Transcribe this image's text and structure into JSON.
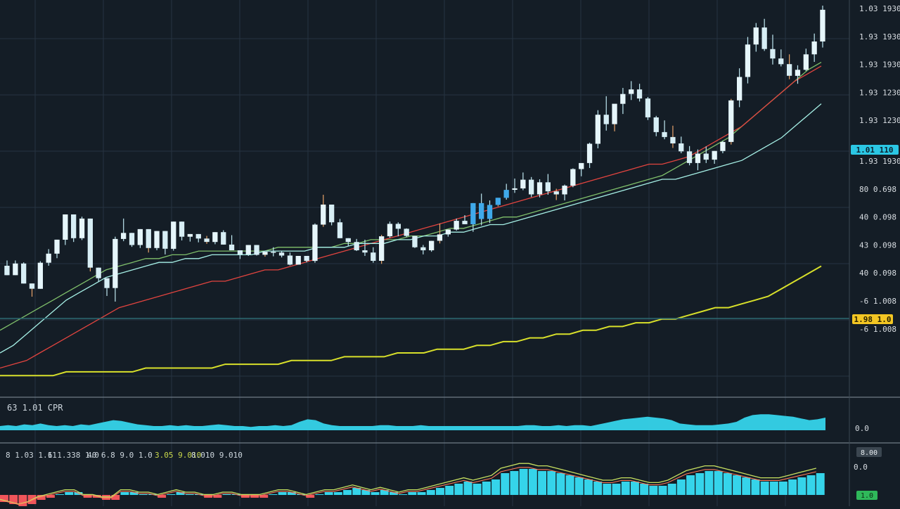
{
  "colors": {
    "background": "#141d26",
    "grid": "#263441",
    "bull": "#e6f6fb",
    "bear": "#e6f6fb",
    "wick": "#bfe8f2",
    "ma_green": "#7fbf6a",
    "ma_red": "#e2443f",
    "ma_cyan": "#a6f0e6",
    "ma_yellow": "#d8e02a",
    "volume": "#35d4ea",
    "hist_pos": "#35d4ea",
    "hist_neg": "#f0555a",
    "price_tag_cyan": "#2bc7e4",
    "price_tag_yellow": "#f3c623",
    "price_line": "#2d6b72",
    "axis_text": "#d8dde2"
  },
  "price_axis": {
    "ticks": [
      "1.03 1930",
      "1.93 1930",
      "1.93 1930",
      "1.93 1230",
      "1.93 1230",
      "1.93 1930",
      "80 0.698",
      "40 0.098",
      "43 0.098",
      "40 0.098",
      "-6 1.008",
      "-6 1.008"
    ]
  },
  "price_tags": {
    "current": "1.01 110",
    "level": "1.98 1.0"
  },
  "volume_panel": {
    "label": "63 1.01 CPR",
    "axis_value": "0.0"
  },
  "macd_panel": {
    "label_parts": [
      "8 1.03 1.11",
      "6 1.338 1.0",
      "40 6.8 9.0 1.0",
      "3.05 9.010",
      "8.010 9.010"
    ],
    "axis_top": "8.00",
    "axis_mid": "0.0",
    "axis_bottom": "1.0"
  },
  "chart_data": {
    "type": "candlestick",
    "title": "",
    "xlabel": "",
    "ylabel": "",
    "ylim": [
      0,
      100
    ],
    "grid": true,
    "legend": "none",
    "candles": [
      {
        "o": 31.1,
        "h": 32.5,
        "l": 28.6,
        "c": 28.6
      },
      {
        "o": 28.6,
        "h": 32.5,
        "l": 28.6,
        "c": 31.7
      },
      {
        "o": 31.7,
        "h": 32.0,
        "l": 26.4,
        "c": 26.4
      },
      {
        "o": 26.4,
        "h": 26.4,
        "l": 22.9,
        "c": 25.0
      },
      {
        "o": 25.0,
        "h": 32.3,
        "l": 25.0,
        "c": 31.9
      },
      {
        "o": 31.9,
        "h": 35.5,
        "l": 31.1,
        "c": 34.3
      },
      {
        "o": 34.3,
        "h": 38.0,
        "l": 33.1,
        "c": 38.0
      },
      {
        "o": 38.0,
        "h": 44.7,
        "l": 36.6,
        "c": 44.7
      },
      {
        "o": 44.7,
        "h": 44.7,
        "l": 37.4,
        "c": 38.4
      },
      {
        "o": 38.4,
        "h": 44.1,
        "l": 37.9,
        "c": 43.6
      },
      {
        "o": 43.6,
        "h": 43.6,
        "l": 29.6,
        "c": 30.6
      },
      {
        "o": 30.6,
        "h": 30.6,
        "l": 26.8,
        "c": 27.8
      },
      {
        "o": 27.8,
        "h": 27.8,
        "l": 23.1,
        "c": 25.2
      },
      {
        "o": 25.2,
        "h": 38.8,
        "l": 21.6,
        "c": 38.2
      },
      {
        "o": 38.2,
        "h": 43.6,
        "l": 37.6,
        "c": 39.8
      },
      {
        "o": 39.8,
        "h": 39.8,
        "l": 36.1,
        "c": 36.6
      },
      {
        "o": 36.6,
        "h": 40.8,
        "l": 35.8,
        "c": 40.8
      },
      {
        "o": 40.8,
        "h": 40.8,
        "l": 34.6,
        "c": 35.8
      },
      {
        "o": 35.8,
        "h": 40.3,
        "l": 35.2,
        "c": 40.3
      },
      {
        "o": 40.3,
        "h": 40.3,
        "l": 34.1,
        "c": 35.6
      },
      {
        "o": 35.6,
        "h": 42.8,
        "l": 35.1,
        "c": 42.8
      },
      {
        "o": 42.8,
        "h": 42.8,
        "l": 37.8,
        "c": 38.8
      },
      {
        "o": 38.8,
        "h": 39.5,
        "l": 37.5,
        "c": 39.5
      },
      {
        "o": 39.5,
        "h": 39.5,
        "l": 37.3,
        "c": 38.3
      },
      {
        "o": 38.3,
        "h": 39.0,
        "l": 36.9,
        "c": 37.4
      },
      {
        "o": 37.4,
        "h": 40.0,
        "l": 36.8,
        "c": 40.0
      },
      {
        "o": 40.0,
        "h": 40.5,
        "l": 36.7,
        "c": 36.7
      },
      {
        "o": 36.7,
        "h": 39.2,
        "l": 35.2,
        "c": 35.2
      },
      {
        "o": 35.2,
        "h": 35.2,
        "l": 32.9,
        "c": 34.1
      },
      {
        "o": 34.1,
        "h": 36.6,
        "l": 33.7,
        "c": 36.6
      },
      {
        "o": 36.6,
        "h": 36.6,
        "l": 33.8,
        "c": 34.0
      },
      {
        "o": 34.0,
        "h": 34.8,
        "l": 33.5,
        "c": 34.8
      },
      {
        "o": 34.8,
        "h": 36.0,
        "l": 33.6,
        "c": 34.6
      },
      {
        "o": 34.6,
        "h": 35.0,
        "l": 33.3,
        "c": 33.8
      },
      {
        "o": 33.8,
        "h": 34.6,
        "l": 31.2,
        "c": 31.4
      },
      {
        "o": 31.4,
        "h": 33.7,
        "l": 31.4,
        "c": 33.7
      },
      {
        "o": 33.7,
        "h": 33.7,
        "l": 32.0,
        "c": 32.4
      },
      {
        "o": 32.4,
        "h": 42.3,
        "l": 31.9,
        "c": 42.0
      },
      {
        "o": 42.0,
        "h": 49.9,
        "l": 41.4,
        "c": 47.3
      },
      {
        "o": 47.3,
        "h": 47.3,
        "l": 41.8,
        "c": 42.6
      },
      {
        "o": 42.6,
        "h": 43.5,
        "l": 38.4,
        "c": 38.4
      },
      {
        "o": 38.4,
        "h": 38.4,
        "l": 36.4,
        "c": 37.4
      },
      {
        "o": 37.4,
        "h": 38.2,
        "l": 35.0,
        "c": 35.2
      },
      {
        "o": 35.2,
        "h": 38.0,
        "l": 33.7,
        "c": 34.6
      },
      {
        "o": 34.6,
        "h": 36.0,
        "l": 31.9,
        "c": 32.4
      },
      {
        "o": 32.4,
        "h": 39.3,
        "l": 31.6,
        "c": 38.9
      },
      {
        "o": 38.9,
        "h": 42.8,
        "l": 38.5,
        "c": 42.2
      },
      {
        "o": 42.2,
        "h": 42.6,
        "l": 38.9,
        "c": 40.9
      },
      {
        "o": 40.9,
        "h": 41.0,
        "l": 38.7,
        "c": 39.0
      },
      {
        "o": 39.0,
        "h": 39.0,
        "l": 35.8,
        "c": 36.0
      },
      {
        "o": 36.0,
        "h": 36.6,
        "l": 34.1,
        "c": 35.2
      },
      {
        "o": 35.2,
        "h": 37.7,
        "l": 34.8,
        "c": 37.7
      },
      {
        "o": 37.7,
        "h": 42.3,
        "l": 37.0,
        "c": 39.4
      },
      {
        "o": 39.4,
        "h": 40.7,
        "l": 38.8,
        "c": 40.7
      },
      {
        "o": 40.7,
        "h": 43.6,
        "l": 40.4,
        "c": 43.0
      },
      {
        "o": 43.0,
        "h": 44.5,
        "l": 42.1,
        "c": 42.1
      },
      {
        "o": 42.1,
        "h": 47.7,
        "l": 40.1,
        "c": 47.7
      },
      {
        "o": 47.7,
        "h": 50.2,
        "l": 41.8,
        "c": 43.5
      },
      {
        "o": 43.5,
        "h": 48.4,
        "l": 42.4,
        "c": 47.2
      },
      {
        "o": 47.2,
        "h": 49.1,
        "l": 46.8,
        "c": 49.1
      },
      {
        "o": 49.1,
        "h": 52.8,
        "l": 48.6,
        "c": 51.2
      },
      {
        "o": 51.2,
        "h": 54.2,
        "l": 50.4,
        "c": 51.6
      },
      {
        "o": 51.6,
        "h": 55.8,
        "l": 51.1,
        "c": 53.9
      },
      {
        "o": 53.9,
        "h": 54.6,
        "l": 49.3,
        "c": 50.0
      },
      {
        "o": 50.0,
        "h": 54.0,
        "l": 49.2,
        "c": 53.2
      },
      {
        "o": 53.2,
        "h": 55.4,
        "l": 49.9,
        "c": 50.8
      },
      {
        "o": 50.8,
        "h": 51.5,
        "l": 48.5,
        "c": 50.0
      },
      {
        "o": 50.0,
        "h": 52.6,
        "l": 48.4,
        "c": 52.3
      },
      {
        "o": 52.3,
        "h": 56.9,
        "l": 51.9,
        "c": 56.7
      },
      {
        "o": 56.7,
        "h": 57.4,
        "l": 54.8,
        "c": 58.3
      },
      {
        "o": 58.3,
        "h": 63.7,
        "l": 57.0,
        "c": 63.4
      },
      {
        "o": 63.4,
        "h": 72.3,
        "l": 62.2,
        "c": 71.1
      },
      {
        "o": 71.1,
        "h": 76.0,
        "l": 66.9,
        "c": 68.6
      },
      {
        "o": 68.6,
        "h": 73.7,
        "l": 66.7,
        "c": 74.0
      },
      {
        "o": 74.0,
        "h": 78.2,
        "l": 71.3,
        "c": 76.6
      },
      {
        "o": 76.6,
        "h": 80.0,
        "l": 75.0,
        "c": 77.8
      },
      {
        "o": 77.8,
        "h": 79.3,
        "l": 74.6,
        "c": 75.4
      },
      {
        "o": 75.4,
        "h": 75.8,
        "l": 69.7,
        "c": 70.4
      },
      {
        "o": 70.4,
        "h": 70.8,
        "l": 65.4,
        "c": 66.5
      },
      {
        "o": 66.5,
        "h": 69.6,
        "l": 64.6,
        "c": 65.2
      },
      {
        "o": 65.2,
        "h": 68.2,
        "l": 62.3,
        "c": 63.5
      },
      {
        "o": 63.5,
        "h": 65.3,
        "l": 60.9,
        "c": 61.4
      },
      {
        "o": 61.4,
        "h": 62.8,
        "l": 57.7,
        "c": 58.3
      },
      {
        "o": 58.3,
        "h": 61.9,
        "l": 56.4,
        "c": 60.8
      },
      {
        "o": 60.8,
        "h": 62.7,
        "l": 58.3,
        "c": 59.2
      },
      {
        "o": 59.2,
        "h": 61.5,
        "l": 58.1,
        "c": 61.5
      },
      {
        "o": 61.5,
        "h": 64.2,
        "l": 60.9,
        "c": 63.9
      },
      {
        "o": 63.9,
        "h": 75.3,
        "l": 63.2,
        "c": 74.9
      },
      {
        "o": 74.9,
        "h": 83.4,
        "l": 73.1,
        "c": 81.1
      },
      {
        "o": 81.1,
        "h": 91.7,
        "l": 79.4,
        "c": 89.7
      },
      {
        "o": 89.7,
        "h": 95.4,
        "l": 87.8,
        "c": 94.2
      },
      {
        "o": 94.2,
        "h": 96.5,
        "l": 88.0,
        "c": 88.5
      },
      {
        "o": 88.5,
        "h": 92.3,
        "l": 84.4,
        "c": 86.0
      },
      {
        "o": 86.0,
        "h": 88.4,
        "l": 83.9,
        "c": 84.5
      },
      {
        "o": 84.5,
        "h": 87.1,
        "l": 80.5,
        "c": 81.4
      },
      {
        "o": 81.4,
        "h": 84.2,
        "l": 79.3,
        "c": 83.0
      },
      {
        "o": 83.0,
        "h": 88.6,
        "l": 82.7,
        "c": 87.1
      },
      {
        "o": 87.1,
        "h": 92.6,
        "l": 85.1,
        "c": 90.5
      },
      {
        "o": 90.5,
        "h": 100.0,
        "l": 88.9,
        "c": 98.9
      }
    ],
    "moving_averages": [
      {
        "values": [
          14,
          16,
          18,
          20,
          22,
          24,
          26,
          28,
          30,
          31,
          32,
          33,
          33,
          34,
          34,
          35,
          35,
          35,
          35,
          35,
          35,
          36,
          36,
          36,
          36,
          36,
          37,
          37,
          38,
          38,
          38,
          39,
          39,
          40,
          41,
          41,
          42,
          43,
          44,
          44,
          45,
          46,
          47,
          48,
          49,
          50,
          51,
          52,
          53,
          54,
          55,
          57,
          59,
          61,
          63,
          65,
          68,
          71,
          74,
          77,
          80,
          83,
          85
        ]
      },
      {
        "values": [
          4,
          5,
          6,
          8,
          10,
          12,
          14,
          16,
          18,
          20,
          21,
          22,
          23,
          24,
          25,
          26,
          27,
          27,
          28,
          29,
          30,
          30,
          31,
          32,
          33,
          34,
          35,
          36,
          37,
          38,
          39,
          40,
          41,
          42,
          43,
          44,
          45,
          46,
          47,
          48,
          49,
          50,
          51,
          52,
          53,
          54,
          55,
          56,
          57,
          58,
          58,
          59,
          60,
          62,
          64,
          66,
          68,
          71,
          74,
          77,
          80,
          82,
          84
        ]
      },
      {
        "values": [
          8,
          10,
          13,
          16,
          19,
          22,
          24,
          26,
          28,
          29,
          30,
          31,
          32,
          32,
          33,
          33,
          34,
          34,
          34,
          34,
          35,
          35,
          35,
          35,
          36,
          36,
          36,
          37,
          37,
          37,
          38,
          38,
          39,
          39,
          40,
          40,
          41,
          42,
          42,
          43,
          44,
          45,
          46,
          47,
          48,
          49,
          50,
          51,
          52,
          53,
          54,
          54,
          55,
          56,
          57,
          58,
          59,
          61,
          63,
          65,
          68,
          71,
          74
        ]
      },
      {
        "values": [
          2,
          2,
          2,
          2,
          2,
          3,
          3,
          3,
          3,
          3,
          3,
          4,
          4,
          4,
          4,
          4,
          4,
          5,
          5,
          5,
          5,
          5,
          6,
          6,
          6,
          6,
          7,
          7,
          7,
          7,
          8,
          8,
          8,
          9,
          9,
          9,
          10,
          10,
          11,
          11,
          12,
          12,
          13,
          13,
          14,
          14,
          15,
          15,
          16,
          16,
          17,
          17,
          18,
          19,
          20,
          20,
          21,
          22,
          23,
          25,
          27,
          29,
          31
        ]
      }
    ],
    "volume": [
      5,
      6,
      5,
      7,
      6,
      8,
      6,
      5,
      6,
      5,
      7,
      6,
      8,
      10,
      12,
      11,
      9,
      7,
      6,
      5,
      5,
      6,
      5,
      6,
      5,
      5,
      6,
      7,
      6,
      5,
      5,
      4,
      5,
      5,
      6,
      5,
      6,
      10,
      13,
      12,
      8,
      6,
      5,
      5,
      5,
      5,
      5,
      6,
      6,
      5,
      5,
      5,
      6,
      5,
      5,
      5,
      5,
      5,
      5,
      5,
      5,
      5,
      5,
      5,
      5,
      6,
      6,
      5,
      5,
      6,
      5,
      6,
      6,
      5,
      7,
      9,
      11,
      13,
      14,
      15,
      16,
      15,
      14,
      12,
      8,
      7,
      6,
      6,
      6,
      7,
      8,
      10,
      15,
      18,
      19,
      19,
      18,
      17,
      16,
      14,
      12,
      13,
      15
    ],
    "macd_histogram": [
      -3,
      -4,
      -5,
      -4,
      -2,
      -1,
      0,
      1,
      1,
      -1,
      -1,
      -2,
      -2,
      1,
      1,
      0,
      0,
      -1,
      0,
      1,
      0,
      0,
      -1,
      -1,
      0,
      0,
      -1,
      -1,
      -1,
      0,
      1,
      1,
      0,
      -1,
      0,
      1,
      1,
      2,
      3,
      2,
      1,
      2,
      1,
      0,
      1,
      1,
      2,
      3,
      4,
      5,
      6,
      5,
      6,
      7,
      10,
      11,
      12,
      12,
      11,
      11,
      10,
      9,
      8,
      7,
      6,
      5,
      5,
      6,
      6,
      5,
      4,
      4,
      5,
      7,
      9,
      10,
      11,
      11,
      10,
      9,
      8,
      7,
      6,
      6,
      6,
      7,
      8,
      9,
      10
    ]
  }
}
